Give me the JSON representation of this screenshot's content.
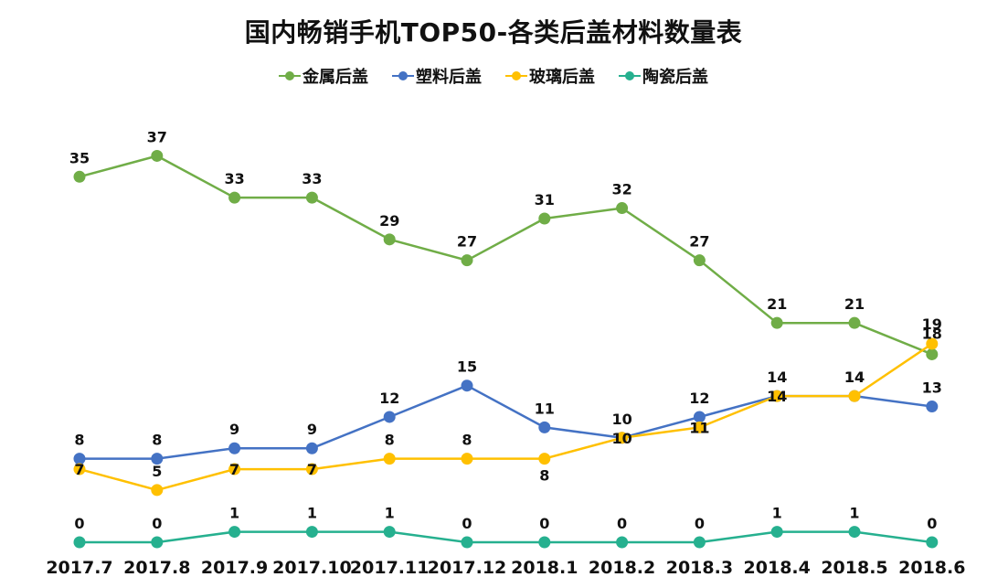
{
  "chart_data": {
    "type": "line",
    "title": "国内畅销手机TOP50-各类后盖材料数量表",
    "categories": [
      "2017.7",
      "2017.8",
      "2017.9",
      "2017.10",
      "2017.11",
      "2017.12",
      "2018.1",
      "2018.2",
      "2018.3",
      "2018.4",
      "2018.5",
      "2018.6"
    ],
    "series": [
      {
        "name": "金属后盖",
        "color": "#70ad47",
        "values": [
          35,
          37,
          33,
          33,
          29,
          27,
          31,
          32,
          27,
          21,
          21,
          18
        ]
      },
      {
        "name": "塑料后盖",
        "color": "#4472c4",
        "values": [
          8,
          8,
          9,
          9,
          12,
          15,
          11,
          10,
          12,
          14,
          14,
          13
        ]
      },
      {
        "name": "玻璃后盖",
        "color": "#ffc000",
        "values": [
          7,
          5,
          7,
          7,
          8,
          8,
          8,
          10,
          11,
          14,
          14,
          19
        ]
      },
      {
        "name": "陶瓷后盖",
        "color": "#26b08f",
        "values": [
          0,
          0,
          1,
          1,
          1,
          0,
          0,
          0,
          0,
          1,
          1,
          0
        ]
      }
    ],
    "xlabel": "",
    "ylabel": "",
    "ylim": [
      0,
      37
    ],
    "grid": false,
    "legend": "top-center"
  }
}
